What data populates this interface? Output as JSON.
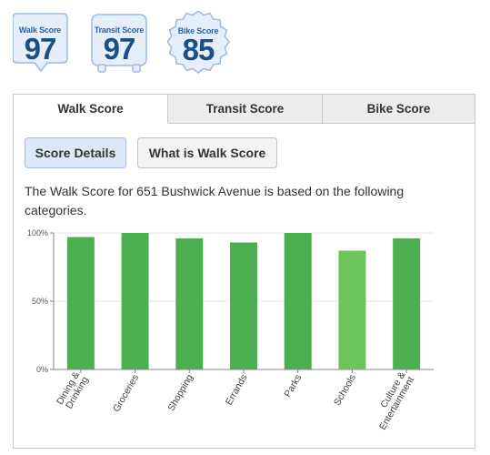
{
  "badges": [
    {
      "label": "Walk Score",
      "value": "97"
    },
    {
      "label": "Transit Score",
      "value": "97"
    },
    {
      "label": "Bike Score",
      "value": "85"
    }
  ],
  "tabs": [
    "Walk Score",
    "Transit Score",
    "Bike Score"
  ],
  "buttons": {
    "details": "Score Details",
    "what": "What is Walk Score"
  },
  "description": "The Walk Score for 651 Bushwick Avenue is based on the following categories.",
  "colors": {
    "bar": "#4caf50",
    "bar_light": "#6cc45a",
    "accent": "#2a63a8"
  },
  "chart_data": {
    "type": "bar",
    "categories": [
      [
        "Dining &",
        "Drinking"
      ],
      [
        "Groceries"
      ],
      [
        "Shopping"
      ],
      [
        "Errands"
      ],
      [
        "Parks"
      ],
      [
        "Schools"
      ],
      [
        "Culture &",
        "Entertainment"
      ]
    ],
    "values": [
      97,
      100,
      96,
      93,
      100,
      87,
      96
    ],
    "yticks": [
      "0%",
      "50%",
      "100%"
    ],
    "ylim": [
      0,
      100
    ],
    "title": "",
    "xlabel": "",
    "ylabel": ""
  }
}
